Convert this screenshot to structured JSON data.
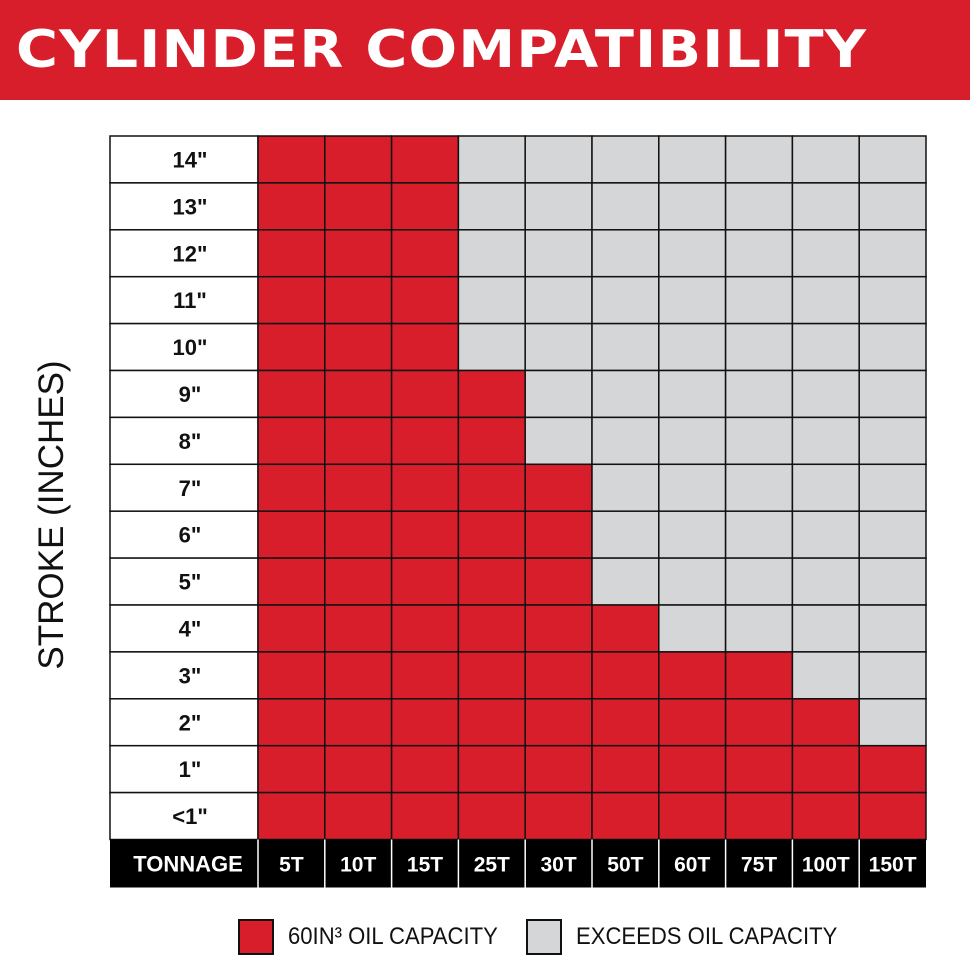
{
  "title": "CYLINDER COMPATIBILITY",
  "colors": {
    "banner": "#d81e2b",
    "ok": "#d81e2b",
    "exceeds": "#d5d6d7",
    "frame": "#111111"
  },
  "legend": {
    "ok_label": "60IN³ OIL CAPACITY",
    "exceeds_label": "EXCEEDS OIL CAPACITY"
  },
  "chart_data": {
    "type": "heatmap",
    "ylabel": "STROKE (INCHES)",
    "xlabel": "TONNAGE",
    "columns": [
      "5T",
      "10T",
      "15T",
      "25T",
      "30T",
      "50T",
      "60T",
      "75T",
      "100T",
      "150T"
    ],
    "rows": [
      "14\"",
      "13\"",
      "12\"",
      "11\"",
      "10\"",
      "9\"",
      "8\"",
      "7\"",
      "6\"",
      "5\"",
      "4\"",
      "3\"",
      "2\"",
      "1\"",
      "<1\""
    ],
    "max_stroke_inches": {
      "5T": 14,
      "10T": 14,
      "15T": 14,
      "25T": 9,
      "30T": 7,
      "50T": 4,
      "60T": 3,
      "75T": 3,
      "100T": 2,
      "150T": 1
    },
    "categories": [
      "60IN³ OIL CAPACITY",
      "EXCEEDS OIL CAPACITY"
    ]
  }
}
